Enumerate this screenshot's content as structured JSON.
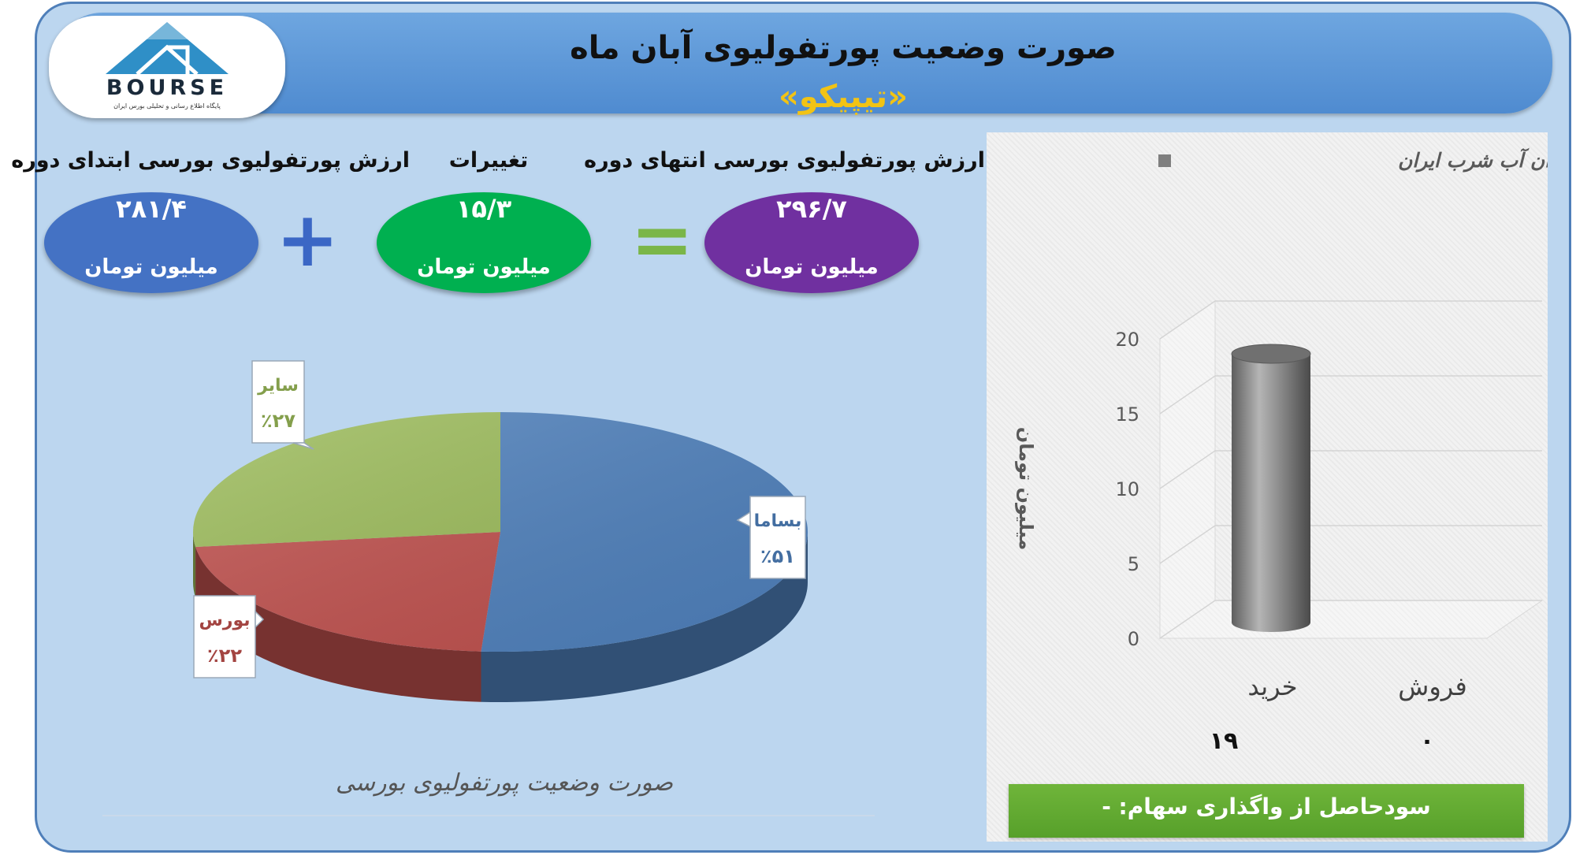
{
  "header": {
    "title": "صورت وضعیت پورتفولیوی آبان ماه",
    "subtitle": "«تیپیکو»"
  },
  "logo": {
    "word": "BOURSE",
    "tagline": "پایگاه اطلاع رسانی و تحلیلی بورس ایران"
  },
  "summary": {
    "start": {
      "label": "ارزش پورتفولیوی بورسی ابتدای دوره",
      "value": "۲۸۱/۴",
      "unit": "میلیون تومان",
      "color": "#4472c4"
    },
    "change": {
      "label": "تغییرات",
      "value": "۱۵/۳",
      "unit": "میلیون تومان",
      "color": "#00b050"
    },
    "end": {
      "label": "ارزش پورتفولیوی بورسی انتهای دوره",
      "value": "۲۹۶/۷",
      "unit": "میلیون تومان",
      "color": "#7030a0"
    },
    "plus_sign": "+",
    "equals_sign": "=",
    "plus_color": "#3b67c5",
    "equals_color": "#7ab648"
  },
  "pie_caption": "صورت وضعیت پورتفولیوی بورسی",
  "bar_footer": "سودحاصل از واگذاری سهام: -",
  "chart_data": [
    {
      "type": "pie",
      "slices": [
        {
          "label": "بساما",
          "value": 51,
          "display": "٪۵۱",
          "color": "#4f81bd"
        },
        {
          "label": "بورس",
          "value": 22,
          "display": "٪۲۲",
          "color": "#c0504d"
        },
        {
          "label": "سایر",
          "value": 27,
          "display": "٪۲۷",
          "color": "#9bbb59"
        }
      ]
    },
    {
      "type": "bar",
      "legend": "راهبران آب شرب ایران",
      "ylabel": "میلیون تومان",
      "ylim": [
        0,
        20
      ],
      "yticks": [
        "0",
        "5",
        "10",
        "15",
        "20"
      ],
      "categories": [
        "خرید",
        "فروش"
      ],
      "values": [
        19,
        0
      ],
      "value_labels": [
        "۱۹",
        "۰"
      ],
      "grid": true,
      "legend_position": "top"
    }
  ]
}
